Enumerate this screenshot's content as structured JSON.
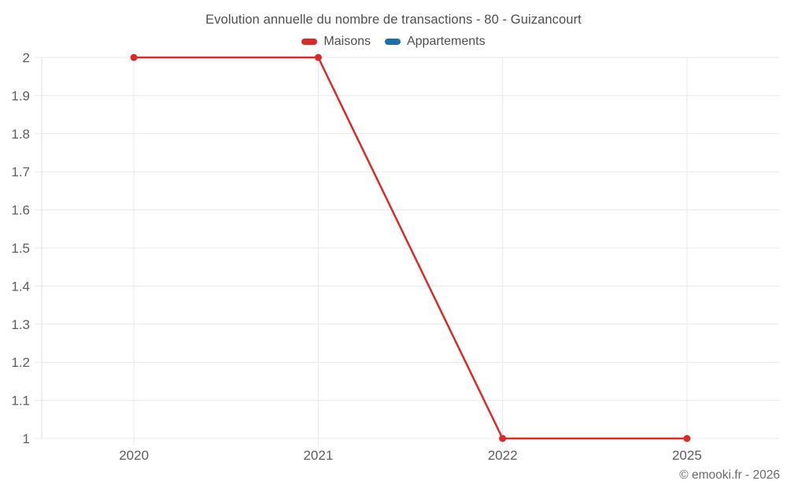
{
  "title": "Evolution annuelle du nombre de transactions - 80 - Guizancourt",
  "legend": [
    {
      "label": "Maisons",
      "color": "#da2a28"
    },
    {
      "label": "Appartements",
      "color": "#1c6fa6"
    }
  ],
  "footer": {
    "credit": "© emooki.fr - 2026"
  },
  "colors": {
    "gridline": "#e9e9e9",
    "axis_line": "#dedede",
    "tick_text": "#5d5d5d",
    "title_text": "#4e4e4e"
  },
  "chart_data": {
    "type": "line",
    "title": "Evolution annuelle du nombre de transactions - 80 - Guizancourt",
    "categories": [
      "2020",
      "2021",
      "2022",
      "2025"
    ],
    "series": [
      {
        "name": "Maisons",
        "color": "#da2a28",
        "values": [
          2,
          2,
          1,
          1
        ]
      },
      {
        "name": "Appartements",
        "color": "#1c6fa6",
        "values": []
      }
    ],
    "xlabel": "",
    "ylabel": "",
    "ylim": [
      1,
      2
    ],
    "ytick_step": 0.1,
    "ytick_labels": [
      "1",
      "1.1",
      "1.2",
      "1.3",
      "1.4",
      "1.5",
      "1.6",
      "1.7",
      "1.8",
      "1.9",
      "2"
    ],
    "grid": true,
    "legend_position": "top",
    "marker": "circle"
  }
}
